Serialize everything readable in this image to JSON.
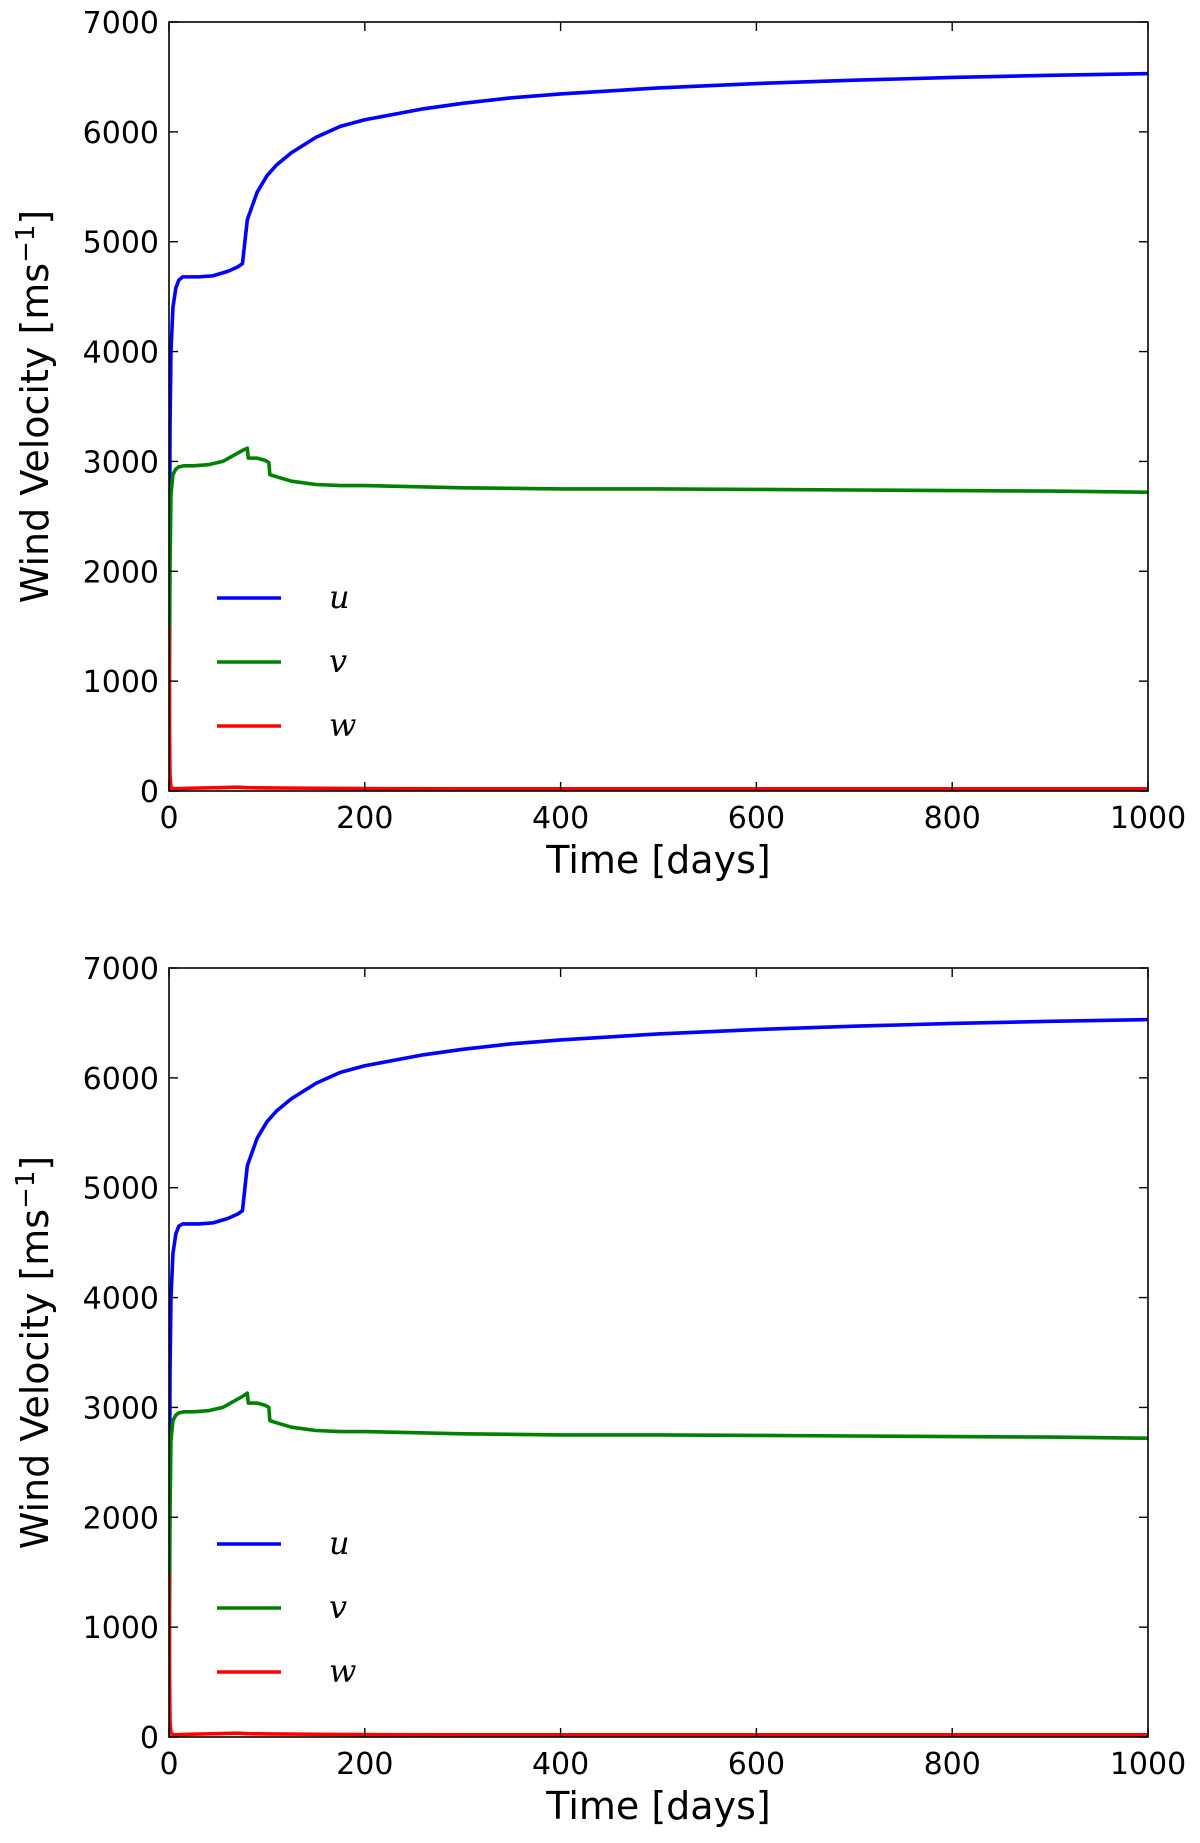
{
  "chart_data": [
    {
      "type": "line",
      "xlabel": "Time [days]",
      "ylabel": "Wind Velocity [ms",
      "ylabel_sup": "−1",
      "ylabel_close": "]",
      "xlim": [
        0,
        1000
      ],
      "ylim": [
        0,
        7000
      ],
      "xticks": [
        0,
        200,
        400,
        600,
        800,
        1000
      ],
      "yticks": [
        0,
        1000,
        2000,
        3000,
        4000,
        5000,
        6000,
        7000
      ],
      "grid": false,
      "legend_position": "lower-left",
      "series": [
        {
          "name": "u",
          "color": "#0000ff",
          "x": [
            0,
            1,
            2,
            4,
            7,
            10,
            14,
            20,
            30,
            45,
            60,
            70,
            75,
            80,
            90,
            100,
            110,
            125,
            150,
            175,
            200,
            230,
            260,
            300,
            350,
            400,
            500,
            600,
            700,
            800,
            900,
            1000
          ],
          "y": [
            0,
            3300,
            4000,
            4400,
            4580,
            4650,
            4680,
            4680,
            4680,
            4690,
            4730,
            4770,
            4800,
            5200,
            5450,
            5600,
            5700,
            5810,
            5950,
            6050,
            6110,
            6160,
            6210,
            6260,
            6310,
            6345,
            6400,
            6440,
            6470,
            6495,
            6515,
            6530
          ]
        },
        {
          "name": "v",
          "color": "#008000",
          "x": [
            0,
            1,
            2,
            4,
            7,
            10,
            15,
            25,
            40,
            55,
            65,
            75,
            80,
            81,
            90,
            98,
            102,
            103,
            110,
            125,
            150,
            175,
            200,
            250,
            300,
            400,
            500,
            600,
            700,
            800,
            900,
            1000
          ],
          "y": [
            0,
            2000,
            2700,
            2880,
            2930,
            2950,
            2960,
            2960,
            2970,
            3000,
            3050,
            3100,
            3120,
            3030,
            3030,
            3010,
            2990,
            2880,
            2860,
            2820,
            2790,
            2780,
            2780,
            2770,
            2760,
            2750,
            2750,
            2745,
            2740,
            2735,
            2730,
            2720
          ]
        },
        {
          "name": "w",
          "color": "#ff0000",
          "x": [
            0,
            0.5,
            1,
            2,
            5,
            20,
            50,
            70,
            80,
            100,
            150,
            200,
            300,
            400,
            500,
            600,
            700,
            800,
            900,
            1000
          ],
          "y": [
            1500,
            600,
            150,
            30,
            20,
            25,
            30,
            35,
            30,
            28,
            25,
            22,
            20,
            20,
            20,
            20,
            20,
            20,
            20,
            20
          ]
        }
      ]
    },
    {
      "type": "line",
      "xlabel": "Time [days]",
      "ylabel": "Wind Velocity [ms",
      "ylabel_sup": "−1",
      "ylabel_close": "]",
      "xlim": [
        0,
        1000
      ],
      "ylim": [
        0,
        7000
      ],
      "xticks": [
        0,
        200,
        400,
        600,
        800,
        1000
      ],
      "yticks": [
        0,
        1000,
        2000,
        3000,
        4000,
        5000,
        6000,
        7000
      ],
      "grid": false,
      "legend_position": "lower-left",
      "series": [
        {
          "name": "u",
          "color": "#0000ff",
          "x": [
            0,
            1,
            2,
            4,
            7,
            10,
            14,
            20,
            30,
            45,
            60,
            70,
            75,
            80,
            90,
            100,
            110,
            125,
            150,
            175,
            200,
            230,
            260,
            300,
            350,
            400,
            500,
            600,
            700,
            800,
            900,
            1000
          ],
          "y": [
            0,
            3300,
            4000,
            4400,
            4580,
            4650,
            4670,
            4670,
            4670,
            4680,
            4720,
            4760,
            4790,
            5200,
            5450,
            5600,
            5700,
            5810,
            5950,
            6050,
            6110,
            6160,
            6210,
            6260,
            6310,
            6345,
            6400,
            6440,
            6470,
            6495,
            6515,
            6530
          ]
        },
        {
          "name": "v",
          "color": "#008000",
          "x": [
            0,
            1,
            2,
            4,
            7,
            10,
            15,
            25,
            40,
            55,
            65,
            75,
            80,
            81,
            90,
            98,
            102,
            103,
            110,
            125,
            150,
            175,
            200,
            250,
            300,
            400,
            500,
            600,
            700,
            800,
            900,
            1000
          ],
          "y": [
            0,
            2000,
            2700,
            2880,
            2930,
            2950,
            2960,
            2960,
            2970,
            3000,
            3050,
            3100,
            3130,
            3040,
            3040,
            3020,
            3000,
            2880,
            2860,
            2820,
            2790,
            2780,
            2780,
            2770,
            2760,
            2750,
            2750,
            2745,
            2740,
            2735,
            2730,
            2720
          ]
        },
        {
          "name": "w",
          "color": "#ff0000",
          "x": [
            0,
            0.5,
            1,
            2,
            5,
            20,
            50,
            70,
            80,
            100,
            150,
            200,
            300,
            400,
            500,
            600,
            700,
            800,
            900,
            1000
          ],
          "y": [
            1500,
            600,
            150,
            30,
            20,
            25,
            30,
            35,
            30,
            28,
            25,
            22,
            20,
            20,
            20,
            20,
            20,
            20,
            20,
            20
          ]
        }
      ]
    }
  ]
}
